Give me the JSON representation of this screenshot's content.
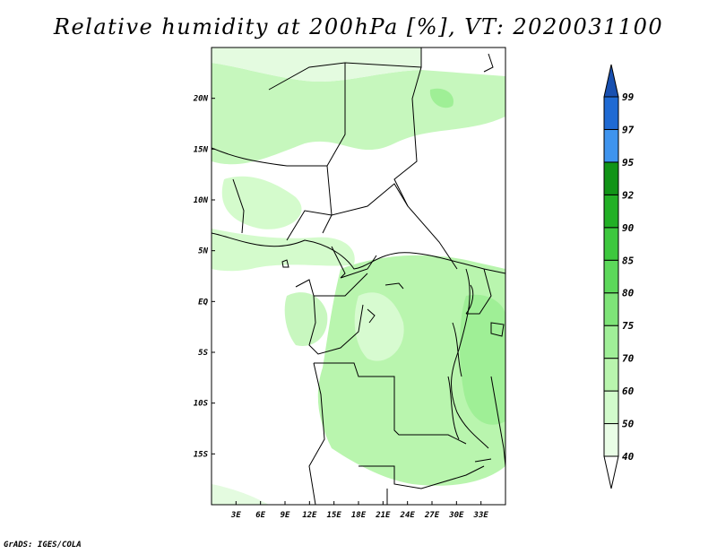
{
  "title": "Relative humidity at 200hPa [%], VT: 2020031100",
  "credit": "GrADS: IGES/COLA",
  "map": {
    "lon_range": [
      0,
      36
    ],
    "lat_range": [
      -20,
      25
    ],
    "lon_ticks": [
      "3E",
      "6E",
      "9E",
      "12E",
      "15E",
      "18E",
      "21E",
      "24E",
      "27E",
      "30E",
      "33E"
    ],
    "lat_ticks": [
      "20N",
      "15N",
      "10N",
      "5N",
      "EQ",
      "5S",
      "10S",
      "15S"
    ]
  },
  "colorbar": {
    "labels": [
      "40",
      "50",
      "60",
      "70",
      "75",
      "80",
      "85",
      "90",
      "92",
      "95",
      "97",
      "99"
    ],
    "colors": [
      "#ffffff",
      "#e9fde6",
      "#d2fbcc",
      "#b9f5ae",
      "#a0ef98",
      "#7ee478",
      "#5cd85a",
      "#3dc83e",
      "#22b025",
      "#119417",
      "#3f94ee",
      "#1f6ad3",
      "#1850b0"
    ]
  }
}
